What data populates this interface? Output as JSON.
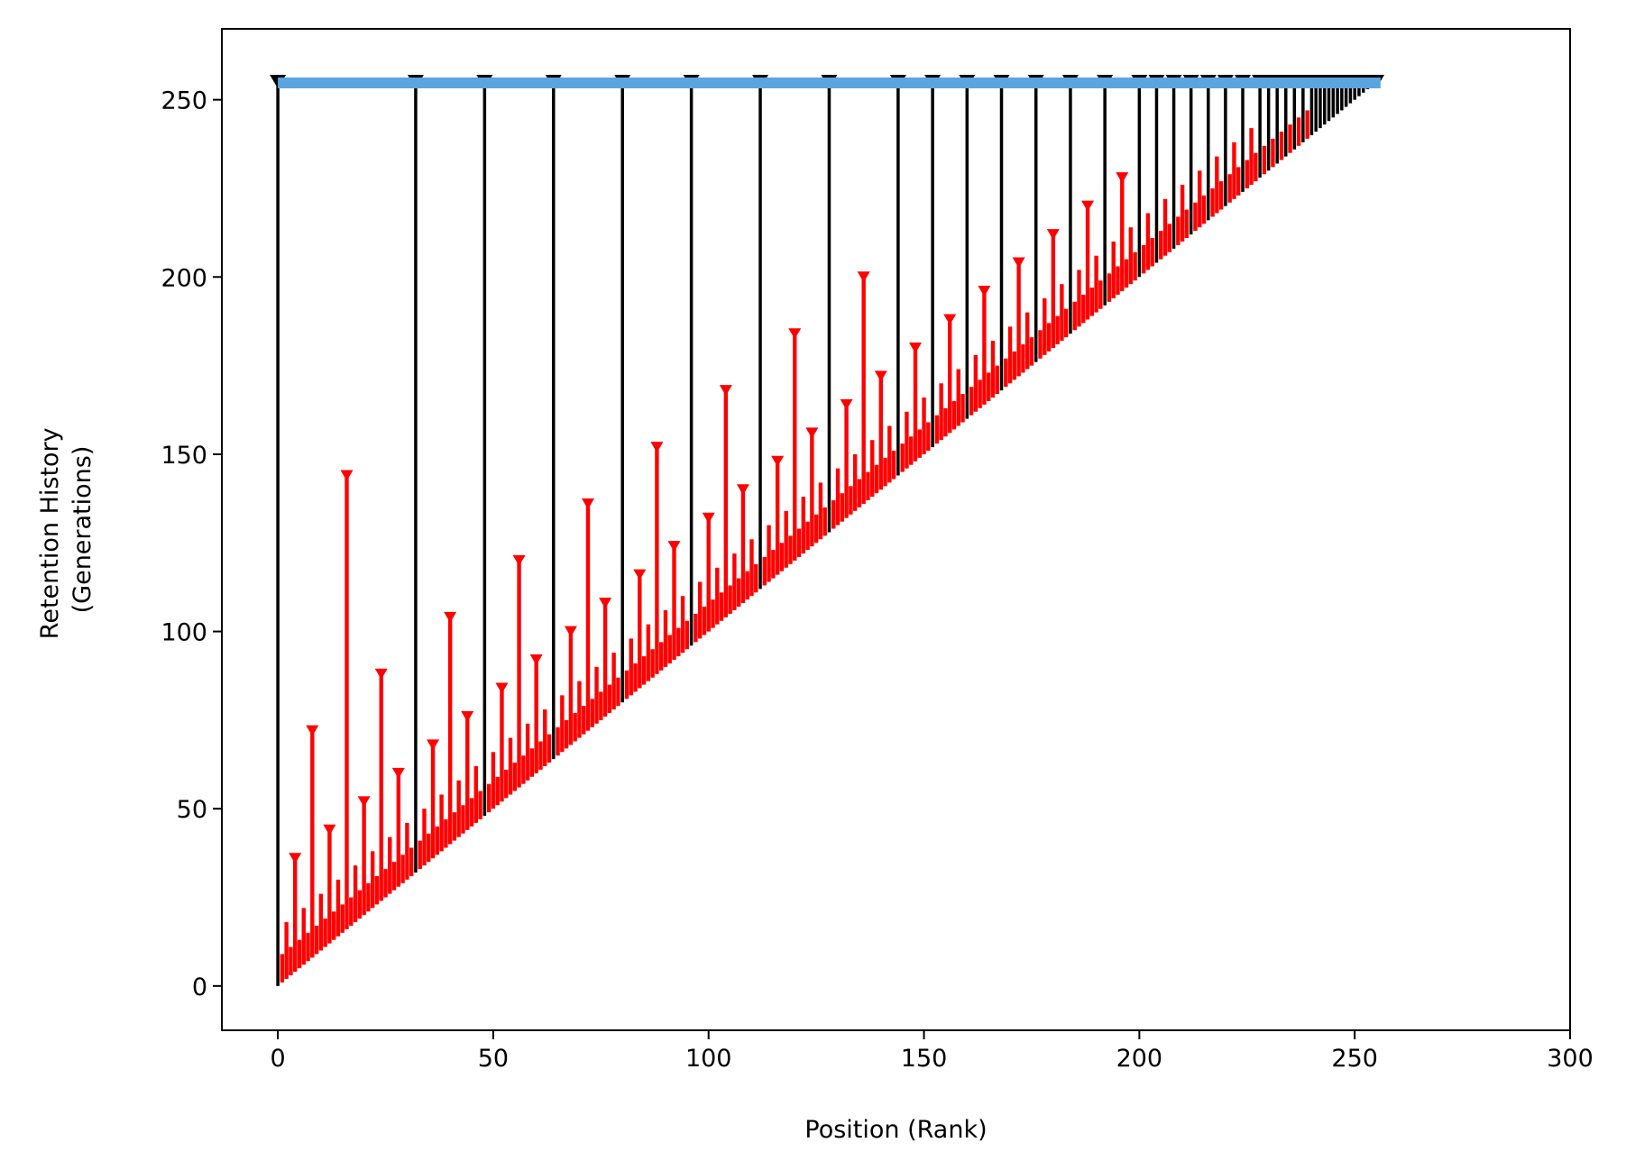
{
  "chart_data": {
    "type": "bar",
    "xlabel": "Position (Rank)",
    "ylabel_lines": [
      "Retention History",
      "(Generations)"
    ],
    "xlim": [
      -13,
      300
    ],
    "ylim": [
      -12.5,
      270
    ],
    "xticks": [
      0,
      50,
      100,
      150,
      200,
      250,
      300
    ],
    "yticks": [
      0,
      50,
      100,
      150,
      200,
      250
    ],
    "grid": false,
    "legend": "none",
    "n_positions": 256,
    "current_generation": 256,
    "series": {
      "current_generation_bar": {
        "color": "#5aa5e0",
        "x_range": [
          0,
          256
        ],
        "y": 255
      },
      "red_stems": {
        "color": "#ff0000",
        "marker": "triangle-down"
      },
      "black_stems": {
        "color": "#000000",
        "marker": "triangle-down"
      }
    },
    "black_stem_positions": [
      0,
      32,
      48,
      64,
      80,
      96,
      112,
      128,
      144,
      152,
      160,
      168,
      176,
      184,
      192,
      200,
      204,
      208,
      212,
      216,
      220,
      224,
      228,
      230,
      232,
      234,
      236,
      238,
      240,
      241,
      242,
      243,
      244,
      245,
      246,
      247,
      248,
      249,
      250,
      251,
      252,
      253,
      254,
      255
    ]
  }
}
